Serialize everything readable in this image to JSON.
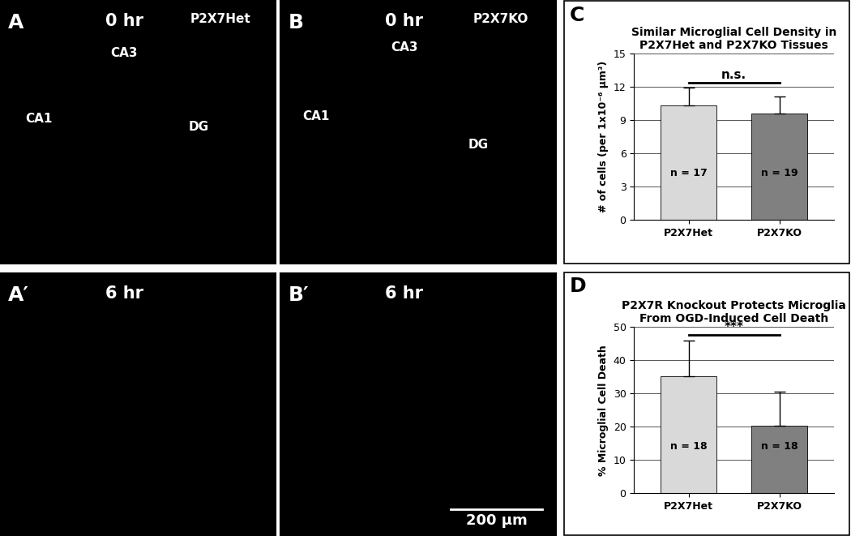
{
  "chart_data": [
    {
      "type": "bar",
      "panel_label": "C",
      "title": "Similar Microglial Cell Density in P2X7Het and P2X7KO Tissues",
      "y_label": "# of cells (per 1x10⁻⁶ µm³)",
      "categories": [
        "P2X7Het",
        "P2X7KO"
      ],
      "values": [
        10.3,
        9.6
      ],
      "error": [
        1.6,
        1.5
      ],
      "colors": [
        "#d9d9d9",
        "#808080"
      ],
      "sample_sizes": [
        "n = 17",
        "n = 19"
      ],
      "significance": "n.s.",
      "ylim": [
        0,
        15
      ],
      "yticks": [
        0,
        3,
        6,
        9,
        12,
        15
      ],
      "grid": true
    },
    {
      "type": "bar",
      "panel_label": "D",
      "title": "P2X7R Knockout Protects Microglia From OGD-Induced Cell Death",
      "y_label": "% Microglial Cell Death",
      "categories": [
        "P2X7Het",
        "P2X7KO"
      ],
      "values": [
        35.2,
        20.3
      ],
      "error": [
        10.8,
        10.3
      ],
      "colors": [
        "#d9d9d9",
        "#808080"
      ],
      "sample_sizes": [
        "n = 18",
        "n = 18"
      ],
      "significance": "***",
      "ylim": [
        0,
        50
      ],
      "yticks": [
        0,
        10,
        20,
        30,
        40,
        50
      ],
      "grid": true
    }
  ],
  "image_panels": [
    {
      "label": "A",
      "time": "0 hr",
      "genotype": "P2X7Het",
      "regions": [
        "CA3",
        "CA1",
        "DG"
      ]
    },
    {
      "label": "B",
      "time": "0 hr",
      "genotype": "P2X7KO",
      "regions": [
        "CA3",
        "CA1",
        "DG"
      ]
    },
    {
      "label": "A′",
      "time": "6 hr"
    },
    {
      "label": "B′",
      "time": "6 hr",
      "scale_bar": "200 µm"
    }
  ]
}
